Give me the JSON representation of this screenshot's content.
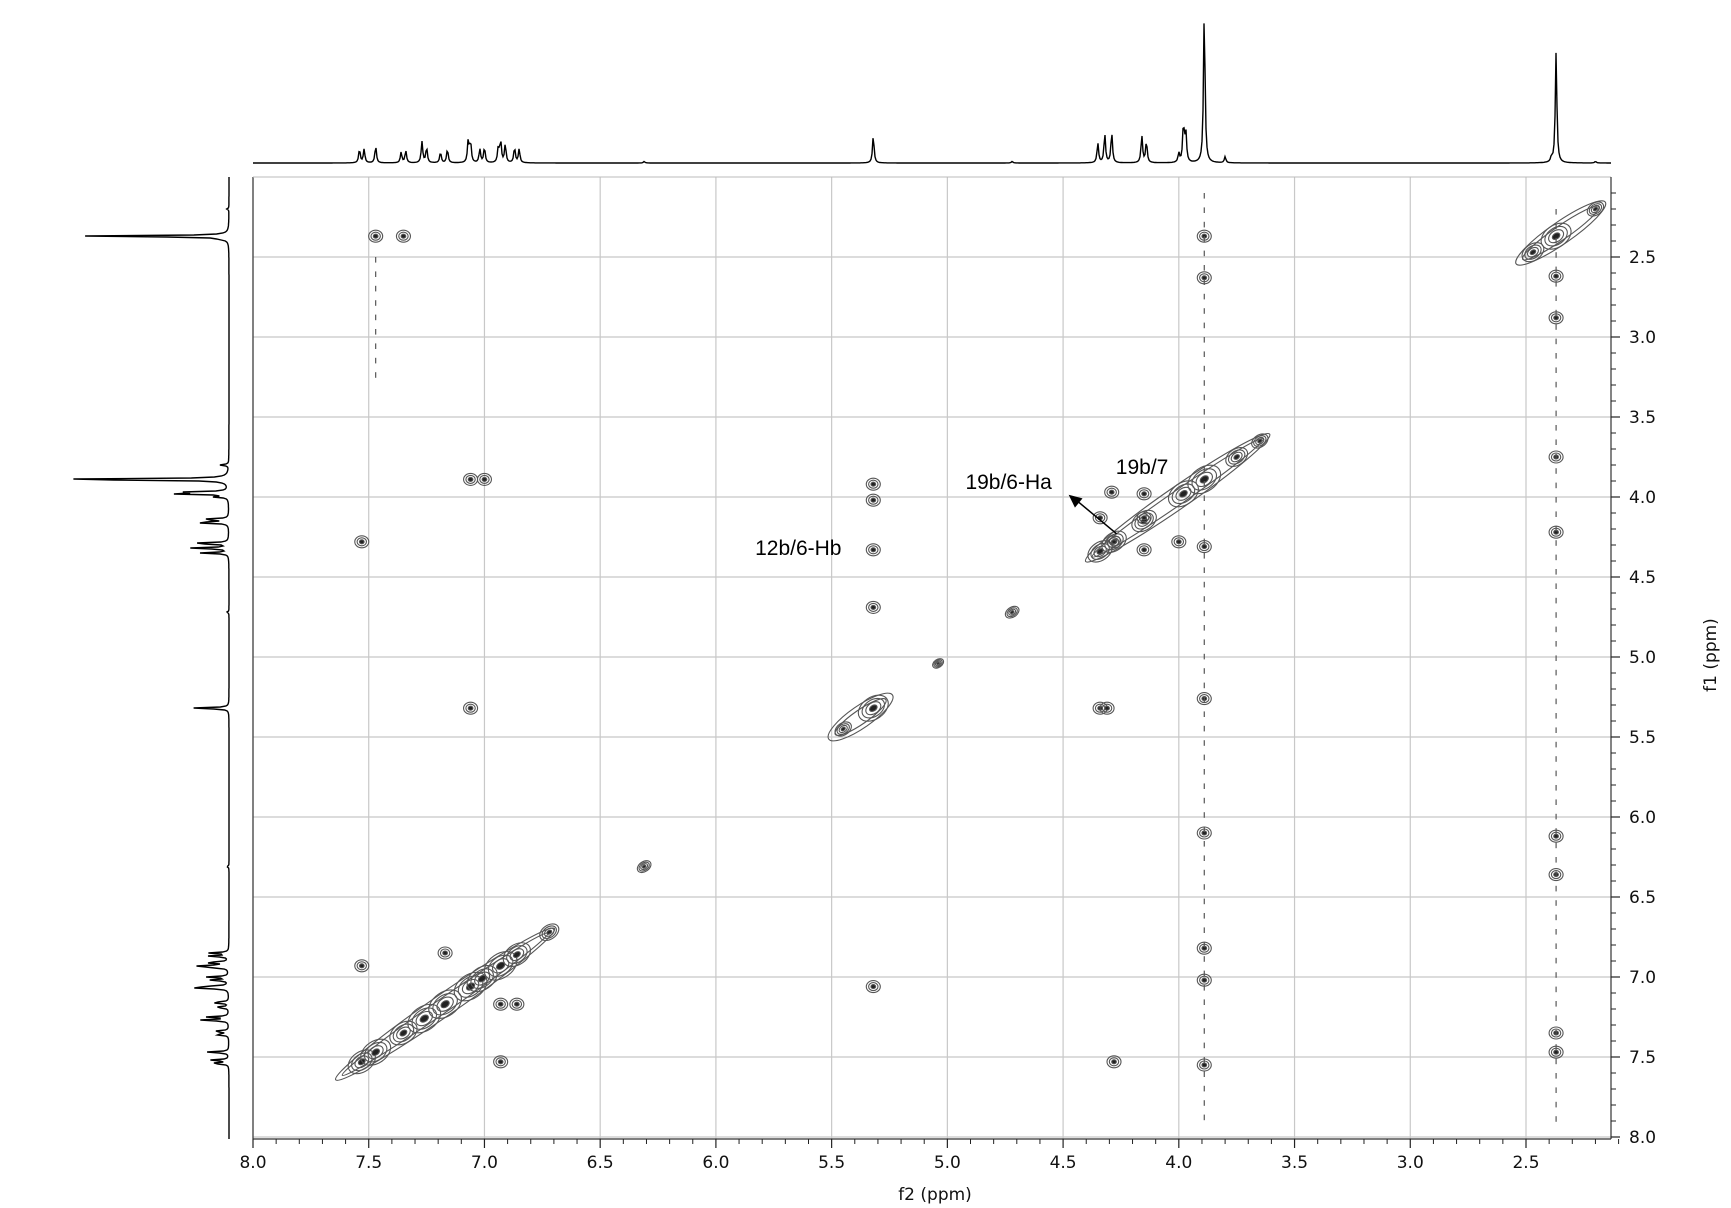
{
  "chart_data": {
    "type": "2D NMR contour plot with 1D projections",
    "xlabel": "f2 (ppm)",
    "ylabel": "f1 (ppm)",
    "xlim": [
      8.0,
      2.0
    ],
    "ylim": [
      2.0,
      8.0
    ],
    "x_ticks": [
      "8.0",
      "7.5",
      "7.0",
      "6.5",
      "6.0",
      "5.5",
      "5.0",
      "4.5",
      "4.0",
      "3.5",
      "3.0",
      "2.5"
    ],
    "y_ticks": [
      "2.5",
      "3.0",
      "3.5",
      "4.0",
      "4.5",
      "5.0",
      "5.5",
      "6.0",
      "6.5",
      "7.0",
      "7.5",
      "8.0"
    ],
    "grid": true,
    "annotations": [
      {
        "text": "19b/6-Ha",
        "target": [
          4.26,
          4.28
        ]
      },
      {
        "text": "19b/7",
        "target": [
          4.31,
          4.2
        ]
      },
      {
        "text": "12b/6-Hb",
        "target": [
          5.32,
          4.33
        ]
      }
    ],
    "projection_peaks": [
      {
        "ppm": 7.54,
        "height": 0.09
      },
      {
        "ppm": 7.52,
        "height": 0.09
      },
      {
        "ppm": 7.47,
        "height": 0.11
      },
      {
        "ppm": 7.36,
        "height": 0.07
      },
      {
        "ppm": 7.34,
        "height": 0.08
      },
      {
        "ppm": 7.27,
        "height": 0.14
      },
      {
        "ppm": 7.25,
        "height": 0.1
      },
      {
        "ppm": 7.19,
        "height": 0.07
      },
      {
        "ppm": 7.16,
        "height": 0.09
      },
      {
        "ppm": 7.07,
        "height": 0.15
      },
      {
        "ppm": 7.06,
        "height": 0.13
      },
      {
        "ppm": 7.02,
        "height": 0.09
      },
      {
        "ppm": 7.0,
        "height": 0.1
      },
      {
        "ppm": 6.94,
        "height": 0.1
      },
      {
        "ppm": 6.93,
        "height": 0.14
      },
      {
        "ppm": 6.91,
        "height": 0.12
      },
      {
        "ppm": 6.87,
        "height": 0.1
      },
      {
        "ppm": 6.85,
        "height": 0.09
      },
      {
        "ppm": 6.31,
        "height": 0.01
      },
      {
        "ppm": 5.32,
        "height": 0.18
      },
      {
        "ppm": 4.72,
        "height": 0.01
      },
      {
        "ppm": 4.35,
        "height": 0.13
      },
      {
        "ppm": 4.32,
        "height": 0.19
      },
      {
        "ppm": 4.29,
        "height": 0.2
      },
      {
        "ppm": 4.16,
        "height": 0.18
      },
      {
        "ppm": 4.14,
        "height": 0.14
      },
      {
        "ppm": 4.0,
        "height": 0.06
      },
      {
        "ppm": 3.98,
        "height": 0.25
      },
      {
        "ppm": 3.97,
        "height": 0.2
      },
      {
        "ppm": 3.89,
        "height": 1.0
      },
      {
        "ppm": 3.8,
        "height": 0.04
      },
      {
        "ppm": 2.39,
        "height": 0.03
      },
      {
        "ppm": 2.37,
        "height": 0.73
      },
      {
        "ppm": 2.2,
        "height": 0.01
      }
    ],
    "diagonal_peaks": [
      {
        "ppm": 7.53,
        "size": 1.0
      },
      {
        "ppm": 7.47,
        "size": 1.1
      },
      {
        "ppm": 7.35,
        "size": 1.0
      },
      {
        "ppm": 7.26,
        "size": 1.2
      },
      {
        "ppm": 7.17,
        "size": 1.2
      },
      {
        "ppm": 7.06,
        "size": 1.2
      },
      {
        "ppm": 7.01,
        "size": 1.1
      },
      {
        "ppm": 6.93,
        "size": 1.2
      },
      {
        "ppm": 6.86,
        "size": 1.0
      },
      {
        "ppm": 6.72,
        "size": 0.7
      },
      {
        "ppm": 6.31,
        "size": 0.5
      },
      {
        "ppm": 5.32,
        "size": 1.1
      },
      {
        "ppm": 5.45,
        "size": 0.6
      },
      {
        "ppm": 5.04,
        "size": 0.4
      },
      {
        "ppm": 4.72,
        "size": 0.5
      },
      {
        "ppm": 4.34,
        "size": 0.9
      },
      {
        "ppm": 4.28,
        "size": 0.9
      },
      {
        "ppm": 4.15,
        "size": 0.9
      },
      {
        "ppm": 3.98,
        "size": 1.1
      },
      {
        "ppm": 3.89,
        "size": 1.2
      },
      {
        "ppm": 3.75,
        "size": 0.8
      },
      {
        "ppm": 3.65,
        "size": 0.6
      },
      {
        "ppm": 2.37,
        "size": 1.1
      },
      {
        "ppm": 2.47,
        "size": 0.8
      },
      {
        "ppm": 2.2,
        "size": 0.6
      }
    ],
    "cross_peaks": [
      {
        "f2": 7.47,
        "f1": 2.37
      },
      {
        "f2": 7.35,
        "f1": 2.37
      },
      {
        "f2": 7.06,
        "f1": 3.89
      },
      {
        "f2": 7.0,
        "f1": 3.89
      },
      {
        "f2": 7.53,
        "f1": 4.28
      },
      {
        "f2": 7.06,
        "f1": 5.32
      },
      {
        "f2": 7.53,
        "f1": 6.93
      },
      {
        "f2": 7.17,
        "f1": 6.85
      },
      {
        "f2": 6.93,
        "f1": 7.53
      },
      {
        "f2": 6.93,
        "f1": 7.17
      },
      {
        "f2": 6.86,
        "f1": 7.17
      },
      {
        "f2": 5.32,
        "f1": 7.06
      },
      {
        "f2": 5.32,
        "f1": 4.33
      },
      {
        "f2": 5.32,
        "f1": 3.92
      },
      {
        "f2": 5.32,
        "f1": 4.02
      },
      {
        "f2": 5.32,
        "f1": 4.69
      },
      {
        "f2": 4.34,
        "f1": 4.13
      },
      {
        "f2": 4.28,
        "f1": 4.28
      },
      {
        "f2": 4.15,
        "f1": 4.33
      },
      {
        "f2": 4.15,
        "f1": 4.13
      },
      {
        "f2": 4.29,
        "f1": 3.97
      },
      {
        "f2": 4.15,
        "f1": 3.98
      },
      {
        "f2": 4.0,
        "f1": 4.28
      },
      {
        "f2": 4.28,
        "f1": 7.53
      },
      {
        "f2": 4.34,
        "f1": 5.32
      },
      {
        "f2": 4.31,
        "f1": 5.32
      },
      {
        "f2": 3.89,
        "f1": 5.26
      },
      {
        "f2": 3.89,
        "f1": 4.31
      },
      {
        "f2": 3.89,
        "f1": 2.37
      },
      {
        "f2": 3.89,
        "f1": 2.63
      },
      {
        "f2": 3.89,
        "f1": 6.1
      },
      {
        "f2": 3.89,
        "f1": 6.82
      },
      {
        "f2": 3.89,
        "f1": 7.02
      },
      {
        "f2": 3.89,
        "f1": 7.55
      },
      {
        "f2": 2.37,
        "f1": 2.62
      },
      {
        "f2": 2.37,
        "f1": 2.88
      },
      {
        "f2": 2.37,
        "f1": 3.75
      },
      {
        "f2": 2.37,
        "f1": 4.22
      },
      {
        "f2": 2.37,
        "f1": 6.12
      },
      {
        "f2": 2.37,
        "f1": 6.36
      },
      {
        "f2": 2.37,
        "f1": 7.35
      },
      {
        "f2": 2.37,
        "f1": 7.47
      }
    ],
    "colors": {
      "contour": "#555555",
      "grid": "#c8c8c8",
      "trace": "#000000"
    }
  }
}
